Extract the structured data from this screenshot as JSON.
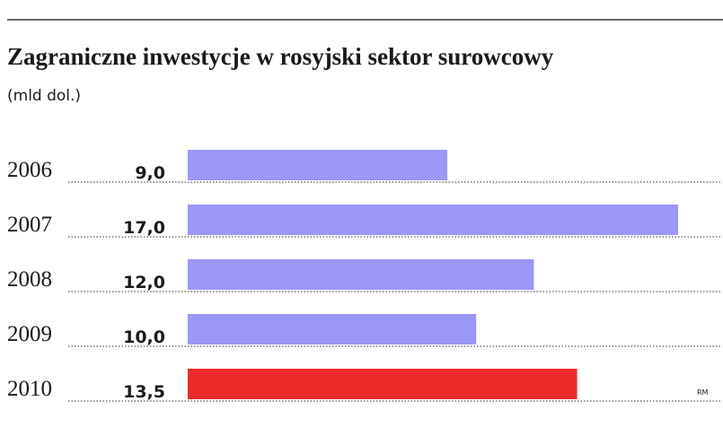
{
  "chart_data": {
    "type": "hbar",
    "title": "Zagraniczne inwestycje w rosyjski sektor surowcowy",
    "subtitle": "(mld dol.)",
    "categories": [
      "2006",
      "2007",
      "2008",
      "2009",
      "2010"
    ],
    "values": [
      9.0,
      17.0,
      12.0,
      10.0,
      13.5
    ],
    "value_labels": [
      "9,0",
      "17,0",
      "12,0",
      "10,0",
      "13,5"
    ],
    "colors": [
      "#9b97f7",
      "#9b97f7",
      "#9b97f7",
      "#9b97f7",
      "#ec2a2a"
    ],
    "credit": "RM"
  }
}
